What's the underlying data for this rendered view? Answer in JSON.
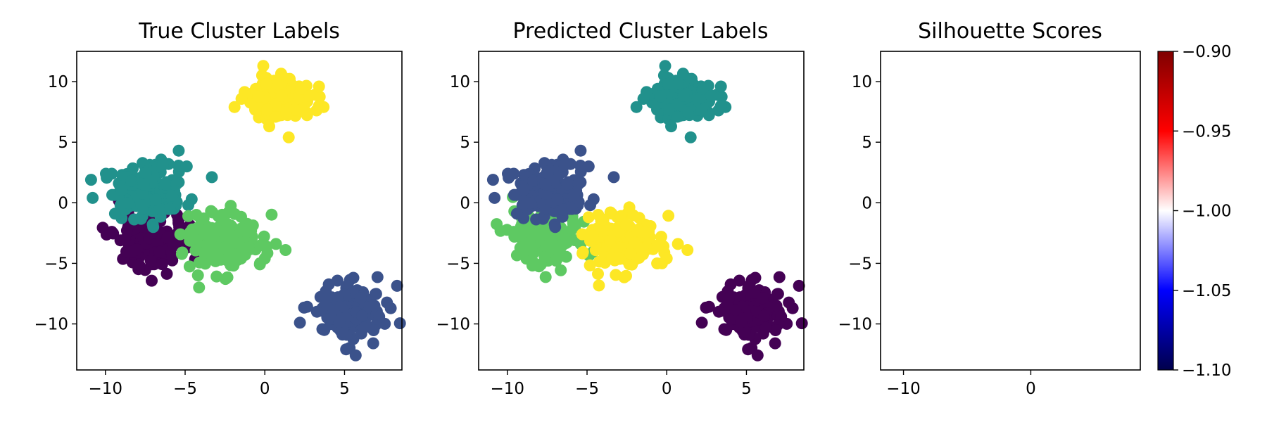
{
  "chart_data": [
    {
      "type": "scatter",
      "title": "True Cluster Labels",
      "xlim": [
        -11.8,
        8.6
      ],
      "ylim": [
        -13.8,
        12.5
      ],
      "xticks": [
        -10,
        -5,
        0,
        5
      ],
      "yticks": [
        -10,
        -5,
        0,
        5,
        10
      ],
      "xtick_labels": [
        "−10",
        "−5",
        "0",
        "5"
      ],
      "ytick_labels": [
        "−10",
        "−5",
        "0",
        "5",
        "10"
      ],
      "clusters": [
        {
          "center": [
            -7.2,
            -3.2
          ],
          "spread": 1.1,
          "color": "#440154",
          "extra": [
            [
              -9.6,
              -2.4
            ],
            [
              -7.9,
              -5.1
            ],
            [
              -5.8,
              -4.4
            ]
          ]
        },
        {
          "center": [
            -7.3,
            1.0
          ],
          "spread": 1.2,
          "color": "#21918c",
          "extra": [
            [
              -10.9,
              1.9
            ],
            [
              -10.8,
              0.4
            ],
            [
              -9.6,
              2.4
            ],
            [
              -5.4,
              4.3
            ],
            [
              -4.9,
              3.0
            ],
            [
              -4.8,
              -0.2
            ],
            [
              -7.0,
              -2.0
            ],
            [
              -9.4,
              -0.9
            ]
          ]
        },
        {
          "center": [
            -2.4,
            -3.2
          ],
          "spread": 1.15,
          "color": "#5ec962",
          "extra": [
            [
              0.7,
              -3.4
            ],
            [
              1.3,
              -3.9
            ],
            [
              0.0,
              -4.6
            ],
            [
              -0.3,
              -5.0
            ],
            [
              -5.3,
              -2.6
            ],
            [
              -4.3,
              -1.0
            ]
          ]
        },
        {
          "center": [
            0.9,
            8.6
          ],
          "spread": 1.05,
          "color": "#fde725",
          "extra": [
            [
              -0.1,
              11.3
            ],
            [
              -1.9,
              7.9
            ],
            [
              3.4,
              9.6
            ],
            [
              1.5,
              5.4
            ],
            [
              3.4,
              8.0
            ]
          ]
        },
        {
          "center": [
            5.2,
            -9.1
          ],
          "spread": 1.1,
          "color": "#3b528b",
          "extra": [
            [
              2.2,
              -9.9
            ],
            [
              5.7,
              -12.6
            ],
            [
              7.9,
              -8.7
            ],
            [
              5.1,
              -12.1
            ],
            [
              6.8,
              -11.6
            ]
          ]
        }
      ]
    },
    {
      "type": "scatter",
      "title": "Predicted Cluster Labels",
      "xlim": [
        -11.8,
        8.6
      ],
      "ylim": [
        -13.8,
        12.5
      ],
      "xticks": [
        -10,
        -5,
        0,
        5
      ],
      "yticks": [
        -10,
        -5,
        0,
        5,
        10
      ],
      "xtick_labels": [
        "−10",
        "−5",
        "0",
        "5"
      ],
      "ytick_labels": [
        "−10",
        "−5",
        "0",
        "5",
        "10"
      ],
      "clusters": [
        {
          "center": [
            -7.7,
            -2.9
          ],
          "spread": 1.1,
          "color": "#5ec962",
          "extra": [
            [
              -9.6,
              -2.4
            ],
            [
              -7.9,
              -5.1
            ],
            [
              -6.7,
              -4.4
            ],
            [
              -9.0,
              -4.0
            ]
          ]
        },
        {
          "center": [
            -7.3,
            1.0
          ],
          "spread": 1.2,
          "color": "#3b528b",
          "extra": [
            [
              -10.9,
              1.9
            ],
            [
              -10.8,
              0.4
            ],
            [
              -9.6,
              2.4
            ],
            [
              -5.4,
              4.3
            ],
            [
              -4.9,
              3.0
            ],
            [
              -4.8,
              -0.2
            ],
            [
              -7.0,
              -2.0
            ],
            [
              -9.4,
              -0.9
            ]
          ]
        },
        {
          "center": [
            -2.6,
            -3.2
          ],
          "spread": 1.1,
          "color": "#fde725",
          "extra": [
            [
              0.7,
              -3.4
            ],
            [
              1.3,
              -3.9
            ],
            [
              0.0,
              -4.6
            ],
            [
              -0.3,
              -5.0
            ],
            [
              -5.3,
              -2.6
            ],
            [
              -4.3,
              -1.0
            ]
          ]
        },
        {
          "center": [
            0.9,
            8.6
          ],
          "spread": 1.05,
          "color": "#21918c",
          "extra": [
            [
              -0.1,
              11.3
            ],
            [
              -1.9,
              7.9
            ],
            [
              3.4,
              9.6
            ],
            [
              1.5,
              5.4
            ],
            [
              3.4,
              8.0
            ]
          ]
        },
        {
          "center": [
            5.2,
            -9.1
          ],
          "spread": 1.1,
          "color": "#440154",
          "extra": [
            [
              2.2,
              -9.9
            ],
            [
              5.7,
              -12.6
            ],
            [
              7.9,
              -8.7
            ],
            [
              5.1,
              -12.1
            ],
            [
              6.8,
              -11.6
            ]
          ]
        }
      ]
    },
    {
      "type": "heatmap",
      "title": "Silhouette Scores",
      "xlim": [
        -11.8,
        8.6
      ],
      "ylim": [
        -13.8,
        12.5
      ],
      "xticks": [
        -10,
        0
      ],
      "yticks": [
        -10,
        -5,
        0,
        5,
        10
      ],
      "xtick_labels": [
        "−10",
        "0"
      ],
      "ytick_labels": [
        "−10",
        "−5",
        "0",
        "5",
        "10"
      ],
      "colormap": "seismic",
      "colorbar": {
        "vmin": -1.1,
        "vmax": -0.9,
        "ticks": [
          -0.9,
          -0.95,
          -1.0,
          -1.05,
          -1.1
        ],
        "tick_labels": [
          "−0.90",
          "−0.95",
          "−1.00",
          "−1.05",
          "−1.10"
        ],
        "colors": [
          "#00004c",
          "#0000ff",
          "#ffffff",
          "#ff0000",
          "#7f0000"
        ]
      }
    }
  ]
}
